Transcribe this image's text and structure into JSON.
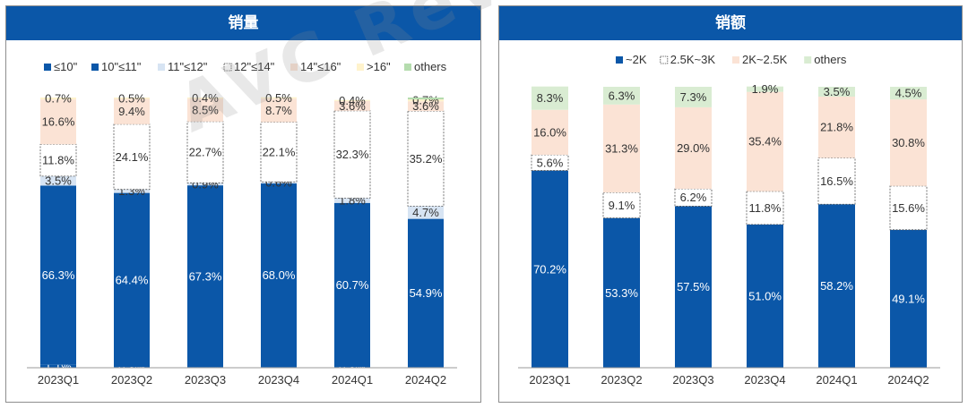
{
  "chart_data": [
    {
      "type": "bar",
      "stacked": true,
      "title": "销量",
      "categories": [
        "2023Q1",
        "2023Q2",
        "2023Q3",
        "2023Q4",
        "2024Q1",
        "2024Q2"
      ],
      "ylim": [
        0,
        100
      ],
      "legend_position": "top",
      "series": [
        {
          "name": "≤10\"",
          "color": "#0b57a8",
          "values": [
            1.1,
            0.3,
            0.2,
            0.2,
            0.3,
            0.2
          ],
          "labels": [
            "1.1%",
            "0.3%",
            "0.2%",
            "0.2%",
            "0.3%",
            "0.2%"
          ]
        },
        {
          "name": "10\"≤11\"",
          "color": "#0b57a8",
          "values": [
            66.3,
            64.4,
            67.3,
            68.0,
            60.7,
            54.9
          ],
          "labels": [
            "66.3%",
            "64.4%",
            "67.3%",
            "68.0%",
            "60.7%",
            "54.9%"
          ]
        },
        {
          "name": "11\"≤12\"",
          "color": "#d7e4f3",
          "values": [
            3.5,
            1.3,
            0.9,
            0.6,
            1.8,
            4.7
          ],
          "labels": [
            "3.5%",
            "1.3%",
            "0.9%",
            "0.6%",
            "1.8%",
            "4.7%"
          ]
        },
        {
          "name": "12\"≤14\"",
          "color": "#ffffff",
          "values": [
            11.8,
            24.1,
            22.7,
            22.1,
            32.3,
            35.2
          ],
          "labels": [
            "11.8%",
            "24.1%",
            "22.7%",
            "22.1%",
            "32.3%",
            "35.2%"
          ]
        },
        {
          "name": "14\"≤16\"",
          "color": "#fbe3d5",
          "values": [
            16.6,
            9.4,
            8.5,
            8.7,
            3.6,
            3.6
          ],
          "labels": [
            "16.6%",
            "9.4%",
            "8.5%",
            "8.7%",
            "3.6%",
            "3.6%"
          ]
        },
        {
          "name": ">16\"",
          "color": "#fff3cc",
          "values": [
            0.7,
            0.5,
            0.4,
            0.5,
            0.4,
            0.7
          ],
          "labels": [
            "0.7%",
            "0.5%",
            "0.4%",
            "0.5%",
            "0.4%",
            "0.7%"
          ]
        },
        {
          "name": "others",
          "color": "#b5dcae",
          "values": [
            0.0,
            0.0,
            0.0,
            0.0,
            0.0,
            0.7
          ],
          "labels": [
            "",
            "",
            "",
            "",
            "",
            ""
          ]
        }
      ]
    },
    {
      "type": "bar",
      "stacked": true,
      "title": "销额",
      "categories": [
        "2023Q1",
        "2023Q2",
        "2023Q3",
        "2023Q4",
        "2024Q1",
        "2024Q2"
      ],
      "ylim": [
        0,
        100
      ],
      "legend_position": "top",
      "series": [
        {
          "name": "~2K",
          "color": "#0b57a8",
          "values": [
            70.2,
            53.3,
            57.5,
            51.0,
            58.2,
            49.1
          ],
          "labels": [
            "70.2%",
            "53.3%",
            "57.5%",
            "51.0%",
            "58.2%",
            "49.1%"
          ]
        },
        {
          "name": "2.5K~3K",
          "color": "#ffffff",
          "values": [
            5.6,
            9.1,
            6.2,
            11.8,
            16.5,
            15.6
          ],
          "labels": [
            "5.6%",
            "9.1%",
            "6.2%",
            "11.8%",
            "16.5%",
            "15.6%"
          ]
        },
        {
          "name": "2K~2.5K",
          "color": "#fbe3d5",
          "values": [
            16.0,
            31.3,
            29.0,
            35.4,
            21.8,
            30.8
          ],
          "labels": [
            "16.0%",
            "31.3%",
            "29.0%",
            "35.4%",
            "21.8%",
            "30.8%"
          ]
        },
        {
          "name": "others",
          "color": "#d9ecd2",
          "values": [
            8.3,
            6.3,
            7.3,
            1.9,
            3.5,
            4.5
          ],
          "labels": [
            "8.3%",
            "6.3%",
            "7.3%",
            "1.9%",
            "3.5%",
            "4.5%"
          ]
        }
      ]
    }
  ],
  "watermark": "AVC Revo 奥维睿沃"
}
